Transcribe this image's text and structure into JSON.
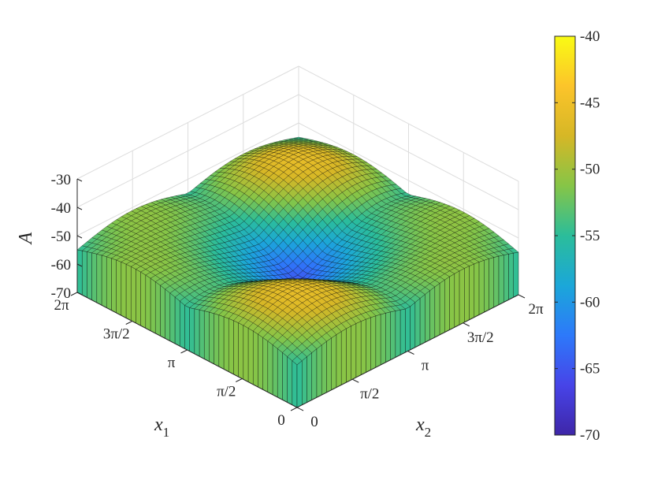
{
  "chart_data": {
    "type": "surface",
    "title": "",
    "function": "A(x1, x2) = -55 + 4·|sin(x1)| + 4·|sin(x2)| + 3·sin(x1)·sin(x2) - 10·sin²(x1/2)·sin²(x2/2)",
    "x1": {
      "label": "x",
      "subscript": "1",
      "range": [
        0,
        6.2832
      ],
      "ticks": [
        0,
        1.5708,
        3.1416,
        4.7124,
        6.2832
      ],
      "tick_labels": [
        "0",
        "π/2",
        "π",
        "3π/2",
        "2π"
      ]
    },
    "x2": {
      "label": "x",
      "subscript": "2",
      "range": [
        0,
        6.2832
      ],
      "ticks": [
        0,
        1.5708,
        3.1416,
        4.7124,
        6.2832
      ],
      "tick_labels": [
        "0",
        "π/2",
        "π",
        "3π/2",
        "2π"
      ]
    },
    "z": {
      "label": "A",
      "range": [
        -70,
        -30
      ],
      "ticks": [
        -70,
        -60,
        -50,
        -40,
        -30
      ],
      "tick_labels": [
        "-70",
        "-60",
        "-50",
        "-40",
        "-30"
      ]
    },
    "colorbar": {
      "colormap": "parula",
      "range": [
        -70,
        -40
      ],
      "ticks": [
        -70,
        -65,
        -60,
        -55,
        -50,
        -45,
        -40
      ],
      "tick_labels": [
        "-70",
        "-65",
        "-60",
        "-55",
        "-50",
        "-45",
        "-40"
      ],
      "placement": "right"
    },
    "grid": true,
    "mesh_resolution": 45,
    "edge_color": "#000000"
  }
}
